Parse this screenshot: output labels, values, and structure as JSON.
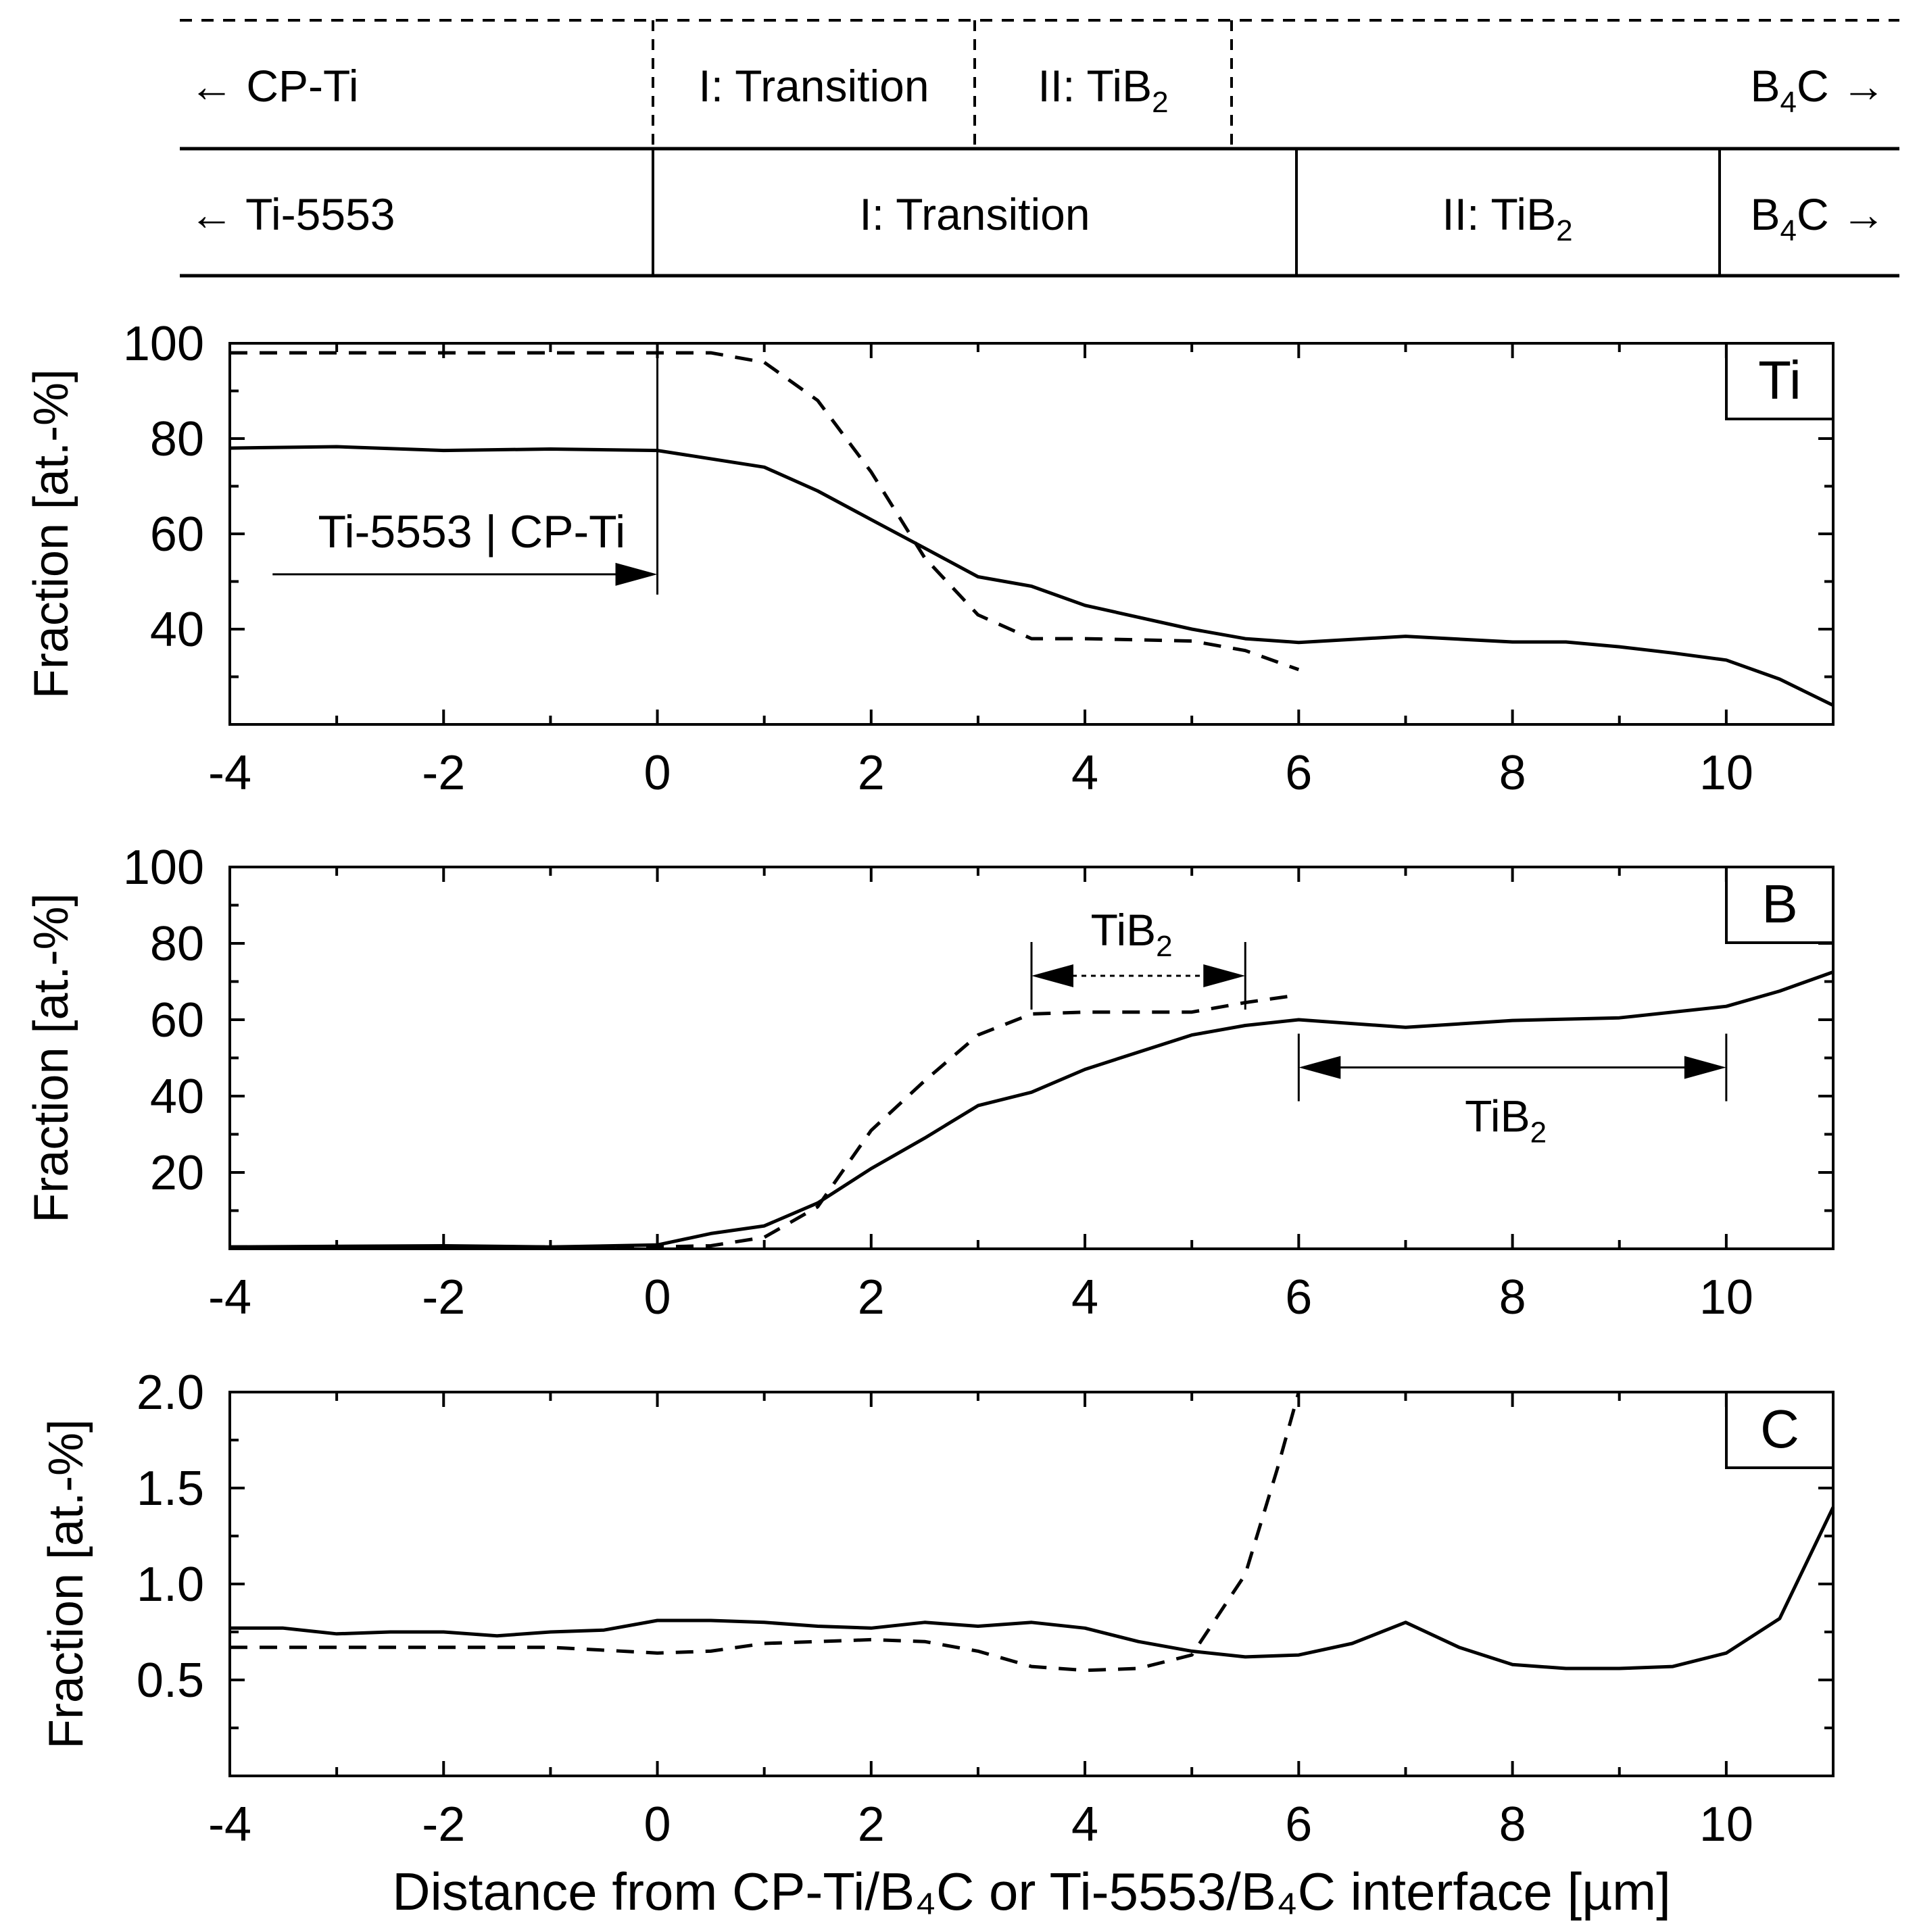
{
  "zones": {
    "cp_ti_row": {
      "left": "← CP-Ti",
      "zone1": "I: Transition",
      "zone2": "II: TiB",
      "zone2_sub": "2",
      "right": "B",
      "right_sub": "4",
      "right_tail": "C →"
    },
    "ti5553_row": {
      "left": "← Ti-5553",
      "zone1": "I: Transition",
      "zone2": "II: TiB",
      "zone2_sub": "2",
      "right": "B",
      "right_sub": "4",
      "right_tail": "C →"
    }
  },
  "chart_data": [
    {
      "type": "line",
      "panel_label": "Ti",
      "ylabel": "Fraction [at.-%]",
      "xlabel": "",
      "xlim": [
        -4,
        11
      ],
      "ylim": [
        20,
        100
      ],
      "x_ticks": [
        -4,
        -2,
        0,
        2,
        4,
        6,
        8,
        10
      ],
      "y_ticks": [
        40,
        60,
        80,
        100
      ],
      "series": [
        {
          "name": "Ti-5553",
          "style": "solid",
          "x": [
            -4,
            -3,
            -2,
            -1,
            0,
            1,
            1.5,
            2,
            2.5,
            3,
            3.5,
            4,
            5,
            5.5,
            6,
            7,
            8,
            8.5,
            9,
            9.5,
            10,
            10.5,
            11
          ],
          "y": [
            78,
            78.3,
            77.5,
            77.8,
            77.5,
            74,
            69,
            63,
            57,
            51,
            49,
            45,
            40,
            38,
            37.2,
            38.5,
            37.3,
            37.3,
            36.3,
            35,
            33.5,
            29.5,
            24
          ]
        },
        {
          "name": "CP-Ti",
          "style": "dashed",
          "x": [
            -4,
            -3,
            -2,
            -1,
            0,
            0.5,
            1,
            1.5,
            2,
            2.5,
            3,
            3.5,
            4,
            5,
            5.5,
            6
          ],
          "y": [
            98,
            98,
            98,
            98,
            98,
            98,
            96,
            88,
            73,
            55,
            43,
            38,
            38,
            37.5,
            35.5,
            31.5
          ]
        }
      ],
      "annotations": [
        {
          "text": "Ti-5553 | CP-Ti",
          "arrow_from_x": -3.6,
          "arrow_to_x": 0,
          "arrow_y": 51.5
        }
      ]
    },
    {
      "type": "line",
      "panel_label": "B",
      "ylabel": "Fraction [at.-%]",
      "xlabel": "",
      "xlim": [
        -4,
        11
      ],
      "ylim": [
        0,
        100
      ],
      "x_ticks": [
        -4,
        -2,
        0,
        2,
        4,
        6,
        8,
        10
      ],
      "y_ticks": [
        20,
        40,
        60,
        80,
        100
      ],
      "series": [
        {
          "name": "Ti-5553",
          "style": "solid",
          "x": [
            -4,
            -2,
            -1,
            0,
            0.5,
            1,
            1.5,
            2,
            2.5,
            3,
            3.5,
            4,
            4.5,
            5,
            5.5,
            6,
            7,
            8,
            9,
            10,
            10.5,
            11
          ],
          "y": [
            0.5,
            0.8,
            0.5,
            1,
            4,
            6,
            12,
            21,
            29,
            37.5,
            41,
            47,
            51.5,
            56,
            58.5,
            60,
            58,
            59.8,
            60.5,
            63.5,
            67.5,
            72.5
          ]
        },
        {
          "name": "CP-Ti",
          "style": "dashed",
          "x": [
            -4,
            -2,
            0,
            0.5,
            1,
            1.5,
            2,
            2.5,
            3,
            3.5,
            4,
            5,
            5.5,
            6
          ],
          "y": [
            0.5,
            0.5,
            0.5,
            0.8,
            3,
            11,
            31,
            44,
            56,
            61.5,
            62,
            62,
            64.5,
            66.5
          ]
        }
      ],
      "annotations": [
        {
          "text": "TiB",
          "sub": "2",
          "from_x": 3.5,
          "to_x": 5.5,
          "y": 71.5,
          "line": "dotted"
        },
        {
          "text": "TiB",
          "sub": "2",
          "from_x": 6,
          "to_x": 10,
          "y": 47.5,
          "line": "solid"
        }
      ]
    },
    {
      "type": "line",
      "panel_label": "C",
      "ylabel": "Fraction [at.-%]",
      "xlabel": "Distance from CP-Ti/B₄C or Ti-5553/B₄C interface [µm]",
      "xlim": [
        -4,
        11
      ],
      "ylim": [
        0,
        2.0
      ],
      "x_ticks": [
        -4,
        -2,
        0,
        2,
        4,
        6,
        8,
        10
      ],
      "y_ticks": [
        0.5,
        1.0,
        1.5,
        2.0
      ],
      "y_tick_labels": [
        "0.5",
        "1.0",
        "1.5",
        "2.0"
      ],
      "series": [
        {
          "name": "Ti-5553",
          "style": "solid",
          "x": [
            -4,
            -3.5,
            -3,
            -2.5,
            -2,
            -1.5,
            -1,
            -0.5,
            0,
            0.5,
            1,
            1.5,
            2,
            2.5,
            3,
            3.5,
            4,
            4.5,
            5,
            5.5,
            6,
            6.5,
            7,
            7.5,
            8,
            8.5,
            9,
            9.5,
            10,
            10.5,
            11
          ],
          "y": [
            0.77,
            0.77,
            0.74,
            0.75,
            0.75,
            0.73,
            0.75,
            0.76,
            0.81,
            0.81,
            0.8,
            0.78,
            0.77,
            0.8,
            0.78,
            0.8,
            0.77,
            0.7,
            0.65,
            0.62,
            0.63,
            0.69,
            0.8,
            0.67,
            0.58,
            0.56,
            0.56,
            0.57,
            0.64,
            0.82,
            1.4
          ]
        },
        {
          "name": "CP-Ti",
          "style": "dashed",
          "x": [
            -4,
            -3,
            -2,
            -1,
            0,
            0.5,
            1,
            1.5,
            2,
            2.5,
            3,
            3.5,
            4,
            4.5,
            5,
            5.5,
            5.8,
            6
          ],
          "y": [
            0.67,
            0.67,
            0.67,
            0.67,
            0.64,
            0.65,
            0.69,
            0.7,
            0.71,
            0.7,
            0.65,
            0.57,
            0.55,
            0.56,
            0.63,
            1.05,
            1.6,
            2.0
          ]
        }
      ]
    }
  ]
}
